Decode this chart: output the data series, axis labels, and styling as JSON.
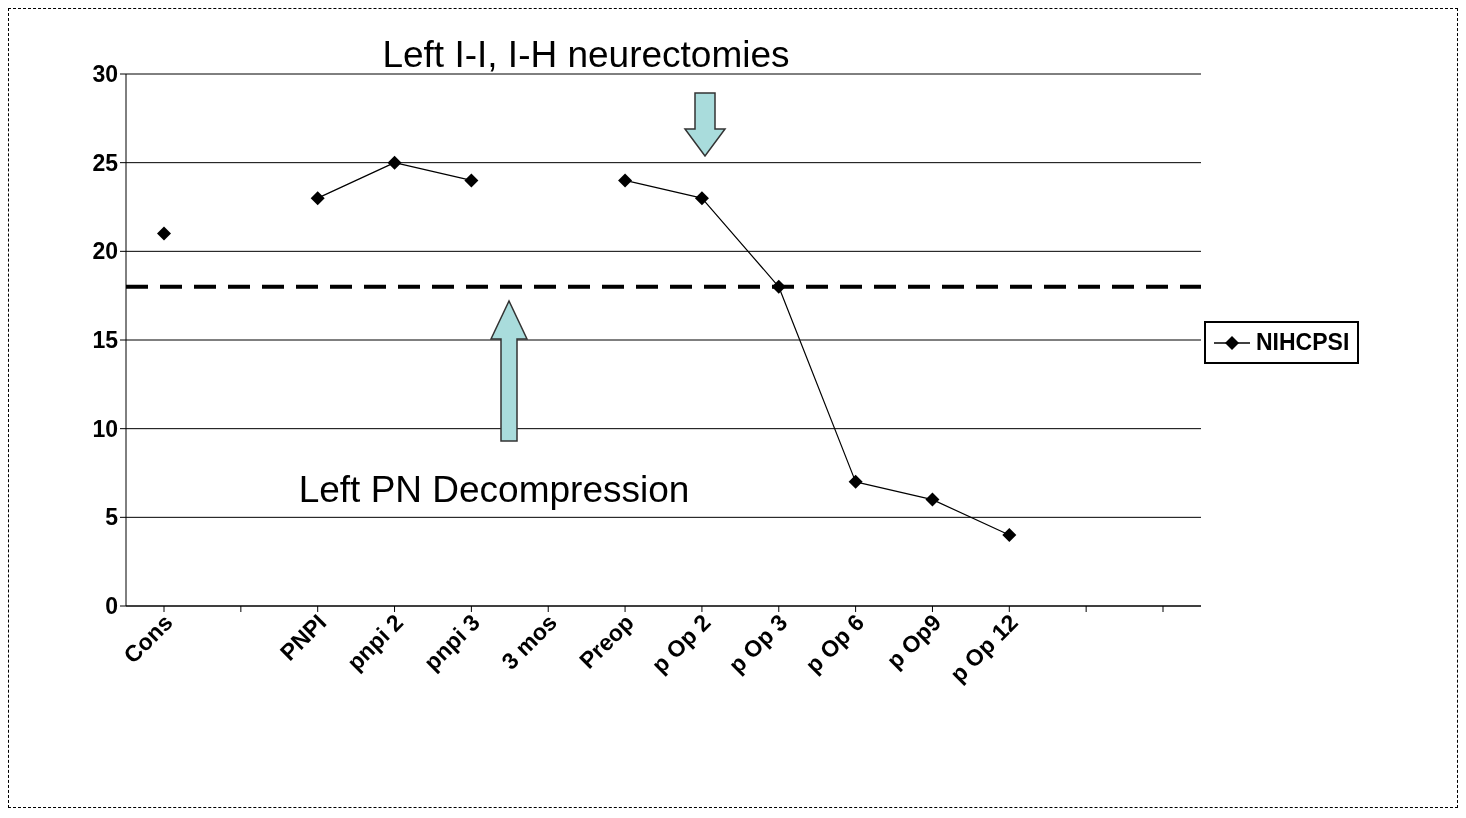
{
  "chart_data": {
    "type": "line",
    "categories": [
      "Cons",
      null,
      "PNPI",
      "pnpi 2",
      "pnpi 3",
      "3 mos",
      "Preop",
      "p Op 2",
      "p Op 3",
      "p Op 6",
      "p Op9",
      "p Op 12",
      null,
      null
    ],
    "series": [
      {
        "name": "NIHCPSI",
        "color": "#000000",
        "values": [
          21,
          null,
          23,
          25,
          24,
          null,
          24,
          23,
          18,
          7,
          6,
          4,
          null,
          null
        ]
      }
    ],
    "ylim": [
      0,
      30
    ],
    "yticks": [
      0,
      5,
      10,
      15,
      20,
      25,
      30
    ],
    "grid": "y",
    "legend": "right",
    "marker": "diamond",
    "line_style": "solid",
    "ref_lines": [
      {
        "axis": "y",
        "value": 18,
        "color": "#000000",
        "line_style": "dashed"
      }
    ],
    "annotations": [
      "Left I-I, I-H neurectomies",
      "Left PN Decompression"
    ]
  }
}
